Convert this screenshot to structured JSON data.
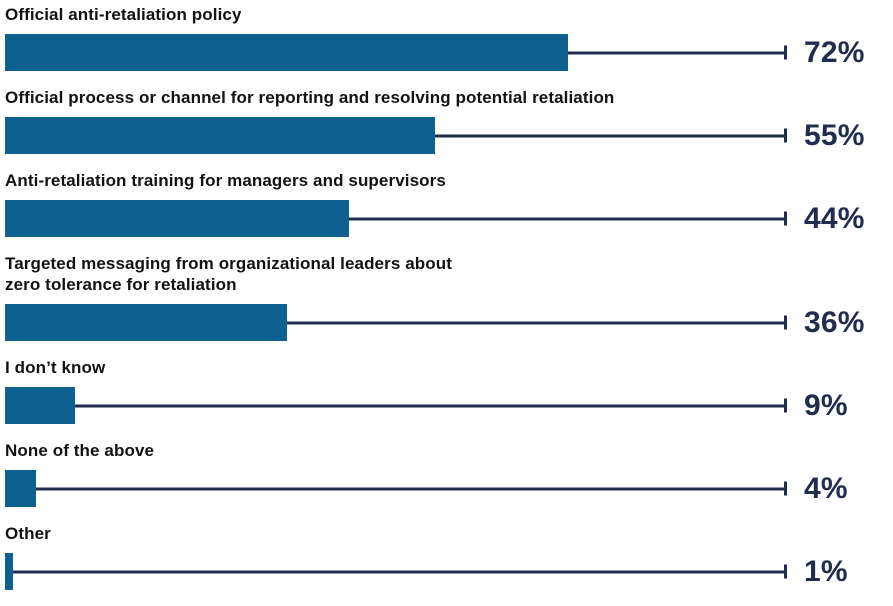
{
  "chart_data": {
    "type": "bar",
    "orientation": "horizontal",
    "unit": "%",
    "xlim": [
      0,
      100
    ],
    "grid": false,
    "legend": false,
    "note": "Each bar has a thin connector line running from the bar end to an end-cap tick at the 100% position, followed by the value label.",
    "categories": [
      "Official anti-retaliation policy",
      "Official process or channel for reporting and resolving potential retaliation",
      "Anti-retaliation training for managers and supervisors",
      "Targeted messaging from organizational leaders about\nzero tolerance for retaliation",
      "I don’t know",
      "None of the above",
      "Other"
    ],
    "values": [
      72,
      55,
      44,
      36,
      9,
      4,
      1
    ],
    "value_labels": [
      "72%",
      "55%",
      "44%",
      "36%",
      "9%",
      "4%",
      "1%"
    ],
    "colors": {
      "bar": "#0e618f",
      "connector_line": "#222d4d",
      "value_text": "#212c4e",
      "category_text": "#121212",
      "background": "#ffffff"
    }
  }
}
